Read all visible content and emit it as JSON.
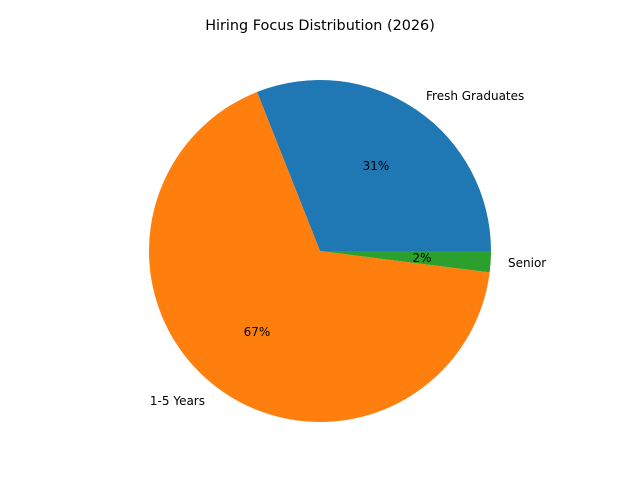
{
  "chart_data": {
    "type": "pie",
    "title": "Hiring Focus Distribution (2026)",
    "categories": [
      "Fresh Graduates",
      "1-5 Years",
      "Senior"
    ],
    "values": [
      31,
      67,
      2
    ],
    "percent_labels": [
      "31%",
      "67%",
      "2%"
    ],
    "colors": [
      "#1f77b4",
      "#ff7f0e",
      "#2ca02c"
    ],
    "start_angle": 0,
    "direction": "counterclockwise",
    "legend": "none"
  },
  "labels": {
    "title": "Hiring Focus Distribution (2026)",
    "slice_0": "Fresh Graduates",
    "slice_1": "1-5 Years",
    "slice_2": "Senior",
    "pct_0": "31%",
    "pct_1": "67%",
    "pct_2": "2%"
  }
}
